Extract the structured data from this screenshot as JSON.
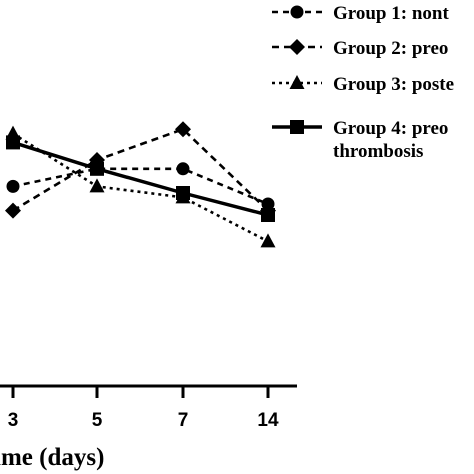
{
  "chart_data": {
    "type": "line",
    "xlabel": "ime (days)",
    "x_ticks": [
      "3",
      "5",
      "7",
      "14"
    ],
    "x": [
      3,
      5,
      7,
      14
    ],
    "grid": false,
    "legend_position": "top-right",
    "series": [
      {
        "name": "Group 1: nont",
        "marker": "circle",
        "dash": "6,5",
        "values": [
          38,
          46,
          46,
          30
        ]
      },
      {
        "name": "Group 2: preo",
        "marker": "diamond",
        "dash": "7,5",
        "values": [
          27,
          50,
          64,
          27
        ]
      },
      {
        "name": "Group 3: poste",
        "marker": "triangle",
        "dash": "3,4",
        "values": [
          62,
          38,
          33,
          13
        ]
      },
      {
        "name": "Group 4: preo\nthrombosis",
        "marker": "square",
        "dash": "",
        "values": [
          58,
          46,
          35,
          25
        ]
      }
    ]
  }
}
